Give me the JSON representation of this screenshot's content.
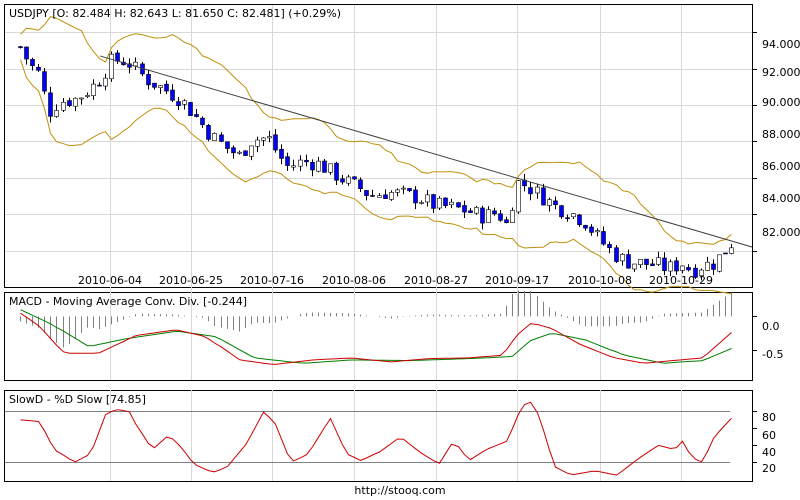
{
  "chart_data": [
    {
      "type": "candlestick",
      "title": "USDJPY [O: 82.484  H: 82.643  L: 81.650  C: 82.481] (+0.29%)",
      "y_ticks": [
        "94.000",
        "92.000",
        "90.000",
        "88.000",
        "86.000",
        "84.000",
        "82.000"
      ],
      "x_ticks": [
        "2010-06-04",
        "2010-06-25",
        "2010-07-16",
        "2010-08-06",
        "2010-08-27",
        "2010-09-17",
        "2010-10-08",
        "2010-10-29"
      ],
      "ylim": [
        80.0,
        95.5
      ],
      "overlays": [
        "Bollinger bands",
        "trend line"
      ],
      "colors": {
        "up": "#ffffff",
        "down": "#0000ff",
        "band": "#c0900c",
        "trend": "#404040"
      }
    },
    {
      "type": "line",
      "title": "MACD - Moving Average Conv. Div. [-0.244]",
      "y_ticks": [
        "0.0",
        "-0.5"
      ],
      "ylim": [
        -0.95,
        0.35
      ],
      "series": [
        {
          "name": "MACD",
          "color": "#cc0000"
        },
        {
          "name": "Signal",
          "color": "#008000"
        },
        {
          "name": "Histogram",
          "color": "#808080"
        }
      ]
    },
    {
      "type": "line",
      "title": "SlowD - %D Slow [74.85]",
      "y_ticks": [
        "80",
        "60",
        "40",
        "20"
      ],
      "ylim": [
        0,
        100
      ],
      "levels": [
        20,
        80
      ],
      "series": [
        {
          "name": "%D Slow",
          "color": "#cc0000"
        }
      ]
    }
  ],
  "footer": "http://stooq.com"
}
